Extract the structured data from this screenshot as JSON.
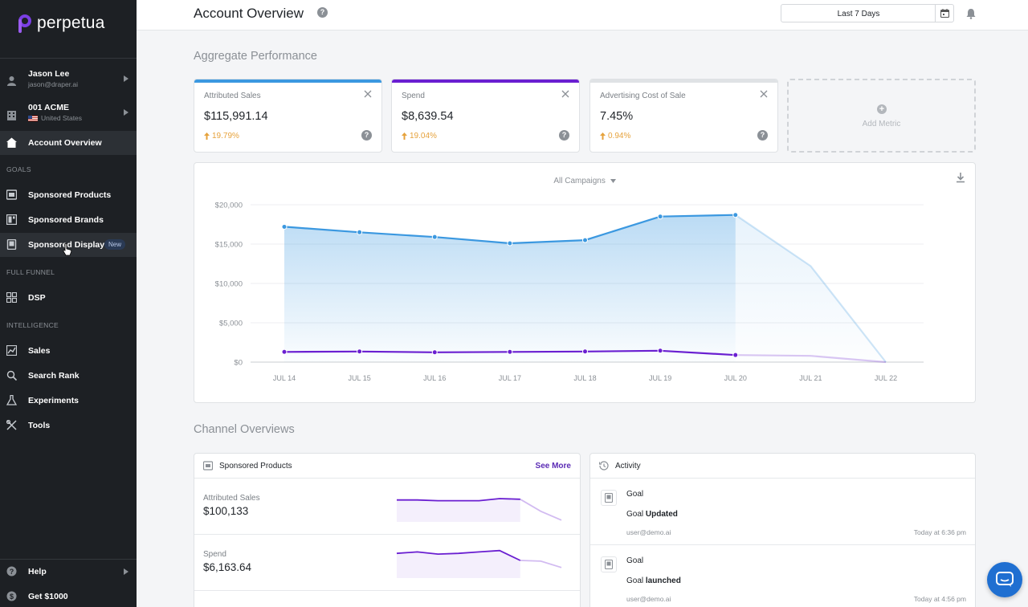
{
  "brand": {
    "name": "perpetua",
    "accent": "#7b3fe4"
  },
  "sidebar": {
    "user": {
      "name": "Jason Lee",
      "email": "jason@draper.ai"
    },
    "account": {
      "name": "001 ACME",
      "country": "United States"
    },
    "overview": {
      "label": "Account Overview"
    },
    "goals_section": "GOALS",
    "goals": [
      {
        "label": "Sponsored Products",
        "icon": "sponsored-products-icon"
      },
      {
        "label": "Sponsored Brands",
        "icon": "sponsored-brands-icon"
      },
      {
        "label": "Sponsored Display",
        "icon": "sponsored-display-icon",
        "badge": "New"
      }
    ],
    "funnel_section": "FULL FUNNEL",
    "dsp": {
      "label": "DSP"
    },
    "intel_section": "INTELLIGENCE",
    "intelligence": [
      {
        "label": "Sales"
      },
      {
        "label": "Search Rank"
      },
      {
        "label": "Experiments"
      },
      {
        "label": "Tools"
      }
    ],
    "help": {
      "label": "Help"
    },
    "referral": {
      "label": "Get $1000"
    }
  },
  "header": {
    "title": "Account Overview",
    "date_range": "Last 7 Days"
  },
  "aggregate": {
    "title": "Aggregate Performance",
    "metrics": [
      {
        "label": "Attributed Sales",
        "value": "$115,991.14",
        "change": "19.79%",
        "color": "#3b98e0"
      },
      {
        "label": "Spend",
        "value": "$8,639.54",
        "change": "19.04%",
        "color": "#6a1fd1"
      },
      {
        "label": "Advertising Cost of Sale",
        "value": "7.45%",
        "change": "0.94%",
        "color": "#dfe2e5"
      }
    ],
    "add_metric": "Add Metric"
  },
  "chart_data": {
    "type": "area",
    "filter": "All Campaigns",
    "categories": [
      "JUL 14",
      "JUL 15",
      "JUL 16",
      "JUL 17",
      "JUL 18",
      "JUL 19",
      "JUL 20",
      "JUL 21",
      "JUL 22"
    ],
    "yticks": [
      "$20,000",
      "$15,000",
      "$10,000",
      "$5,000",
      "$0"
    ],
    "ylim": [
      0,
      20000
    ],
    "series": [
      {
        "name": "Attributed Sales",
        "color": "#3b98e0",
        "values": [
          17200,
          16500,
          15900,
          15100,
          15500,
          18500,
          18700,
          12200,
          0
        ],
        "complete_through": 6
      },
      {
        "name": "Spend",
        "color": "#6a1fd1",
        "values": [
          1300,
          1350,
          1250,
          1300,
          1350,
          1450,
          900,
          800,
          0
        ],
        "complete_through": 6
      }
    ]
  },
  "channels": {
    "title": "Channel Overviews",
    "sponsored_products": {
      "title": "Sponsored Products",
      "see_more": "See More",
      "rows": [
        {
          "label": "Attributed Sales",
          "value": "$100,133",
          "spark": [
            0.62,
            0.62,
            0.6,
            0.6,
            0.6,
            0.66,
            0.64,
            0.3,
            0.05
          ]
        },
        {
          "label": "Spend",
          "value": "$6,163.64",
          "spark": [
            0.7,
            0.74,
            0.68,
            0.7,
            0.74,
            0.78,
            0.5,
            0.48,
            0.3
          ]
        }
      ]
    },
    "activity": {
      "title": "Activity",
      "items": [
        {
          "title": "Goal",
          "prefix": "Goal",
          "action": "Updated",
          "user": "user@demo.ai",
          "time": "Today at 6:36 pm"
        },
        {
          "title": "Goal",
          "prefix": "Goal",
          "action": "launched",
          "user": "user@demo.ai",
          "time": "Today at 4:56 pm"
        }
      ]
    }
  }
}
